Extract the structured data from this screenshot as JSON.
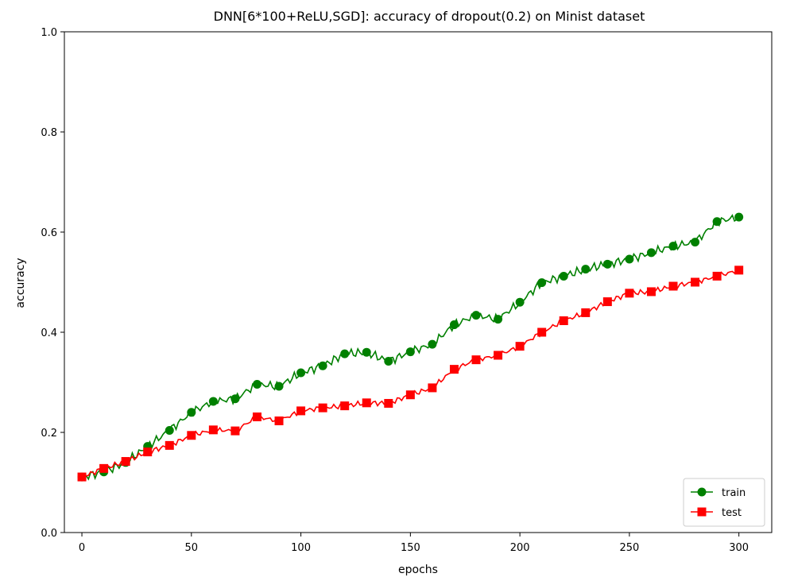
{
  "chart_data": {
    "type": "line",
    "title": "DNN[6*100+ReLU,SGD]: accuracy of dropout(0.2) on Minist dataset",
    "xlabel": "epochs",
    "ylabel": "accuracy",
    "xlim": [
      -8,
      315
    ],
    "ylim": [
      0.0,
      1.0
    ],
    "xticks": [
      0,
      50,
      100,
      150,
      200,
      250,
      300
    ],
    "yticks": [
      0.0,
      0.2,
      0.4,
      0.6,
      0.8,
      1.0
    ],
    "xtick_labels": [
      "0",
      "50",
      "100",
      "150",
      "200",
      "250",
      "300"
    ],
    "ytick_labels": [
      "0.0",
      "0.2",
      "0.4",
      "0.6",
      "0.8",
      "1.0"
    ],
    "legend": {
      "position": "lower-right",
      "entries": [
        "train",
        "test"
      ]
    },
    "series": [
      {
        "name": "train",
        "color": "#008000",
        "marker": "circle",
        "x": [
          0,
          10,
          20,
          30,
          40,
          50,
          60,
          70,
          80,
          90,
          100,
          110,
          120,
          130,
          140,
          150,
          160,
          170,
          180,
          190,
          200,
          210,
          220,
          230,
          240,
          250,
          260,
          270,
          280,
          290,
          300
        ],
        "values": [
          0.111,
          0.121,
          0.14,
          0.172,
          0.204,
          0.24,
          0.262,
          0.267,
          0.296,
          0.292,
          0.319,
          0.333,
          0.357,
          0.36,
          0.342,
          0.361,
          0.376,
          0.415,
          0.434,
          0.426,
          0.46,
          0.499,
          0.512,
          0.526,
          0.536,
          0.546,
          0.559,
          0.572,
          0.58,
          0.621,
          0.63
        ]
      },
      {
        "name": "test",
        "color": "#ff0000",
        "marker": "square",
        "x": [
          0,
          10,
          20,
          30,
          40,
          50,
          60,
          70,
          80,
          90,
          100,
          110,
          120,
          130,
          140,
          150,
          160,
          170,
          180,
          190,
          200,
          210,
          220,
          230,
          240,
          250,
          260,
          270,
          280,
          290,
          300
        ],
        "values": [
          0.111,
          0.128,
          0.142,
          0.161,
          0.174,
          0.194,
          0.205,
          0.203,
          0.231,
          0.223,
          0.243,
          0.249,
          0.253,
          0.259,
          0.258,
          0.275,
          0.289,
          0.326,
          0.345,
          0.354,
          0.372,
          0.4,
          0.423,
          0.439,
          0.461,
          0.478,
          0.481,
          0.492,
          0.5,
          0.512,
          0.524
        ]
      }
    ]
  }
}
